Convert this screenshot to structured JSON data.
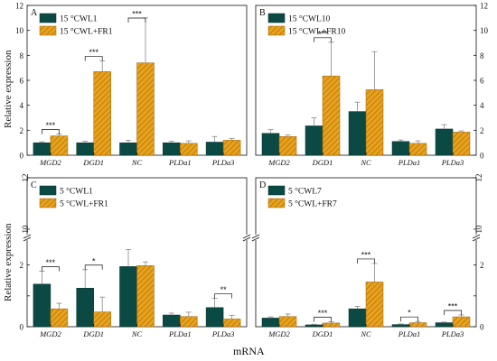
{
  "figure": {
    "xlabel": "mRNA",
    "ylabel": "Relative expression",
    "colors": {
      "ctrl": "#0b4a44",
      "fr": "#e9a21b",
      "hatch": "#b4760f",
      "axis": "#111111"
    }
  },
  "chart_data": [
    {
      "type": "bar",
      "panel": "A",
      "categories": [
        "MGD2",
        "DGD1",
        "NC",
        "PLDa1",
        "PLDa3"
      ],
      "series": [
        {
          "name": "15 °CWL1",
          "values": [
            1.0,
            1.0,
            1.0,
            1.0,
            1.05
          ],
          "err": [
            0.08,
            0.12,
            0.2,
            0.12,
            0.45
          ]
        },
        {
          "name": "15 °CWL+FR1",
          "values": [
            1.55,
            6.7,
            7.4,
            0.95,
            1.2
          ],
          "err": [
            0.15,
            0.85,
            3.6,
            0.2,
            0.15
          ]
        }
      ],
      "ylim": [
        0,
        12
      ],
      "yticks": [
        0,
        2,
        4,
        6,
        8,
        10,
        12
      ],
      "ytick_side": "left",
      "significance": [
        {
          "category": "MGD2",
          "label": "***"
        },
        {
          "category": "DGD1",
          "label": "***"
        },
        {
          "category": "NC",
          "label": "***"
        }
      ]
    },
    {
      "type": "bar",
      "panel": "B",
      "categories": [
        "MGD2",
        "DGD1",
        "NC",
        "PLDa1",
        "PLDa3"
      ],
      "series": [
        {
          "name": "15 °CWL10",
          "values": [
            1.75,
            2.35,
            3.5,
            1.1,
            2.1
          ],
          "err": [
            0.3,
            0.65,
            0.75,
            0.12,
            0.35
          ]
        },
        {
          "name": "15 °CWL+FR10",
          "values": [
            1.5,
            6.35,
            5.25,
            0.95,
            1.85
          ],
          "err": [
            0.12,
            2.7,
            3.05,
            0.2,
            0.1
          ]
        }
      ],
      "ylim": [
        0,
        12
      ],
      "yticks": [
        0,
        2,
        4,
        6,
        8,
        10,
        12
      ],
      "ytick_side": "right",
      "significance": [
        {
          "category": "DGD1",
          "label": "***"
        }
      ]
    },
    {
      "type": "bar",
      "panel": "C",
      "categories": [
        "MGD2",
        "DGD1",
        "NC",
        "PLDa1",
        "PLDa3"
      ],
      "series": [
        {
          "name": "5 °CWL1",
          "values": [
            1.38,
            1.25,
            1.95,
            0.38,
            0.62
          ],
          "err": [
            0.42,
            0.6,
            0.55,
            0.06,
            0.3
          ]
        },
        {
          "name": "5 °CWL+FR1",
          "values": [
            0.58,
            0.48,
            1.98,
            0.33,
            0.25
          ],
          "err": [
            0.18,
            0.48,
            0.12,
            0.14,
            0.12
          ]
        }
      ],
      "ylim": [
        0,
        12
      ],
      "axis_break": [
        2.8,
        9.8
      ],
      "yticks": [
        0,
        1,
        2,
        10,
        12
      ],
      "ytick_labels": [
        "0",
        "",
        "2",
        "10",
        "12"
      ],
      "ytick_side": "left",
      "significance": [
        {
          "category": "MGD2",
          "label": "***"
        },
        {
          "category": "DGD1",
          "label": "*"
        },
        {
          "category": "PLDa3",
          "label": "**"
        }
      ]
    },
    {
      "type": "bar",
      "panel": "D",
      "categories": [
        "MGD2",
        "DGD1",
        "NC",
        "PLDa1",
        "PLDa3"
      ],
      "series": [
        {
          "name": "5 °CWL7",
          "values": [
            0.28,
            0.06,
            0.58,
            0.07,
            0.13
          ],
          "err": [
            0.04,
            0.02,
            0.08,
            0.02,
            0.02
          ]
        },
        {
          "name": "5 °CWL+FR7",
          "values": [
            0.33,
            0.12,
            1.45,
            0.13,
            0.32
          ],
          "err": [
            0.08,
            0.04,
            0.6,
            0.04,
            0.06
          ]
        }
      ],
      "ylim": [
        0,
        12
      ],
      "axis_break": [
        2.8,
        9.8
      ],
      "yticks": [
        0,
        1,
        2,
        10,
        12
      ],
      "ytick_labels": [
        "0",
        "",
        "2",
        "10",
        "12"
      ],
      "ytick_side": "right",
      "significance": [
        {
          "category": "DGD1",
          "label": "***"
        },
        {
          "category": "NC",
          "label": "***"
        },
        {
          "category": "PLDa1",
          "label": "*"
        },
        {
          "category": "PLDa3",
          "label": "***"
        }
      ]
    }
  ]
}
